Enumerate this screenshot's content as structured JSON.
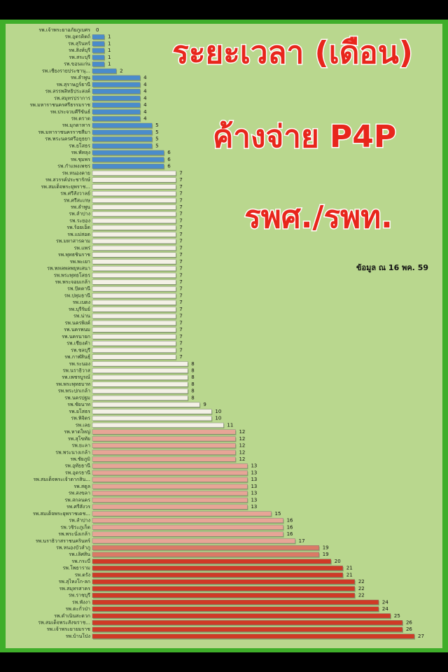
{
  "chart_data": {
    "type": "hbar",
    "title_lines": [
      "ระยะเวลา (เดือน)",
      "ค้างจ่าย P4P",
      "รพศ./รพท."
    ],
    "note": "ข้อมูล ณ 16 พค. 59",
    "categories": [
      "รพ.เจ้าพระยาอภัยภูเบศร",
      "รพ.อุตรดิตถ์",
      "รพ.สุรินทร์",
      "รพ.สิงห์บุรี",
      "รพ.สระบุรี",
      "รพ.ขอนแก่น",
      "รพ.เชียงรายประชานุ...",
      "รพ.ลำพูน",
      "รพ.สุราษฎร์ธานี",
      "รพ.สรรพสิทธิประสงค์",
      "รพ.สมุทรปราการ",
      "รพ.มหาราชนครศรีธรรมราช",
      "รพ.ประจวบคีรีขันธ์",
      "รพ.ตราด",
      "รพ.มุกดาหาร",
      "รพ.มหาราชนครราชสีมา",
      "รพ.พระนครศรีอยุธยา",
      "รพ.ยโสธร",
      "รพ.พัทลุง",
      "รพ.ชุมพร",
      "รพ.กำแพงเพชร",
      "รพ.หนองคาย",
      "รพ.สวรรค์ประชารักษ์",
      "รพ.สมเด็จพระยุพราช...",
      "รพ.ศรีสังวาลย์",
      "รพ.ศรีสะเกษ",
      "รพ.ลำพูน",
      "รพ.ลำปาง",
      "รพ.ระยอง",
      "รพ.ร้อยเอ็ด",
      "รพ.แม่สอด",
      "รพ.มหาสารคาม",
      "รพ.แพร่",
      "รพ.พุทธชินราช",
      "รพ.พะเยา",
      "รพ.พหลพลพยุหเสนา",
      "รพ.พระพุทธโสธร",
      "รพ.พระจอมเกล้า",
      "รพ.ปัตตานี",
      "รพ.ปทุมธานี",
      "รพ.เบตง",
      "รพ.บุรีรัมย์",
      "รพ.น่าน",
      "รพ.นครพิงค์",
      "รพ.นครพนม",
      "รพ.นครนายก",
      "รพ.เชียงคำ",
      "รพ.ชลบุรี",
      "รพ.กาฬสินธุ์",
      "รพ.ระนอง",
      "รพ.นราธิวาส",
      "รพ.เพชรบูรณ์",
      "รพ.พระพุทธบาท",
      "รพ.พระปกเกล้า",
      "รพ.นครปฐม",
      "รพ.ชัยนาท",
      "รพ.ยโสธร",
      "รพ.พิจิตร",
      "รพ.เลย",
      "รพ.หาดใหญ่",
      "รพ.สุโขทัย",
      "รพ.ยะลา",
      "รพ.พระนางเกล้า",
      "รพ.ชัยภูมิ",
      "รพ.อุทัยธานี",
      "รพ.อุดรธานี",
      "รพ.สมเด็จพระเจ้าตากสิน...",
      "รพ.สตูล",
      "รพ.สงขลา",
      "รพ.สกลนคร",
      "รพ.ศรีสังวร",
      "รพ.สมเด็จพระยุพราชเดช...",
      "รพ.ลำปาง",
      "รพ.วชิระภูเก็ต",
      "รพ.พระนั่งเกล้า",
      "รพ.นราธิวาสราชนครินทร์",
      "รพ.หนองบัวลำภู",
      "รพ.เลิศสิน",
      "รพ.กระบี่",
      "รพ.โพธาราม",
      "รพ.ตรัง",
      "รพ.สุไหงโก-ลก",
      "รพ.สมุทรสาคร",
      "รพ.ราชบุรี",
      "รพ.พังงา",
      "รพ.ตะกั่วป่า",
      "รพ.ดำเนินสะดวก",
      "รพ.สมเด็จพระสังฆราช...",
      "รพ.เจ้าพระยายมราช",
      "รพ.บ้านโป่ง"
    ],
    "values": [
      0,
      1,
      1,
      1,
      1,
      1,
      2,
      4,
      4,
      4,
      4,
      4,
      4,
      4,
      5,
      5,
      5,
      5,
      6,
      6,
      6,
      7,
      7,
      7,
      7,
      7,
      7,
      7,
      7,
      7,
      7,
      7,
      7,
      7,
      7,
      7,
      7,
      7,
      7,
      7,
      7,
      7,
      7,
      7,
      7,
      7,
      7,
      7,
      7,
      8,
      8,
      8,
      8,
      8,
      8,
      9,
      10,
      10,
      11,
      12,
      12,
      12,
      12,
      12,
      13,
      13,
      13,
      13,
      13,
      13,
      13,
      15,
      16,
      16,
      16,
      17,
      19,
      19,
      20,
      21,
      21,
      22,
      22,
      22,
      24,
      24,
      25,
      26,
      26,
      27
    ],
    "color_stops": [
      {
        "from": 0,
        "color": "#4a8ccb"
      },
      {
        "from": 7,
        "color": "#f4f1e6"
      },
      {
        "from": 12,
        "color": "#e7a596"
      },
      {
        "from": 19,
        "color": "#db7a66"
      },
      {
        "from": 20,
        "color": "#cf3a26"
      }
    ],
    "xlim": [
      0,
      27
    ]
  }
}
